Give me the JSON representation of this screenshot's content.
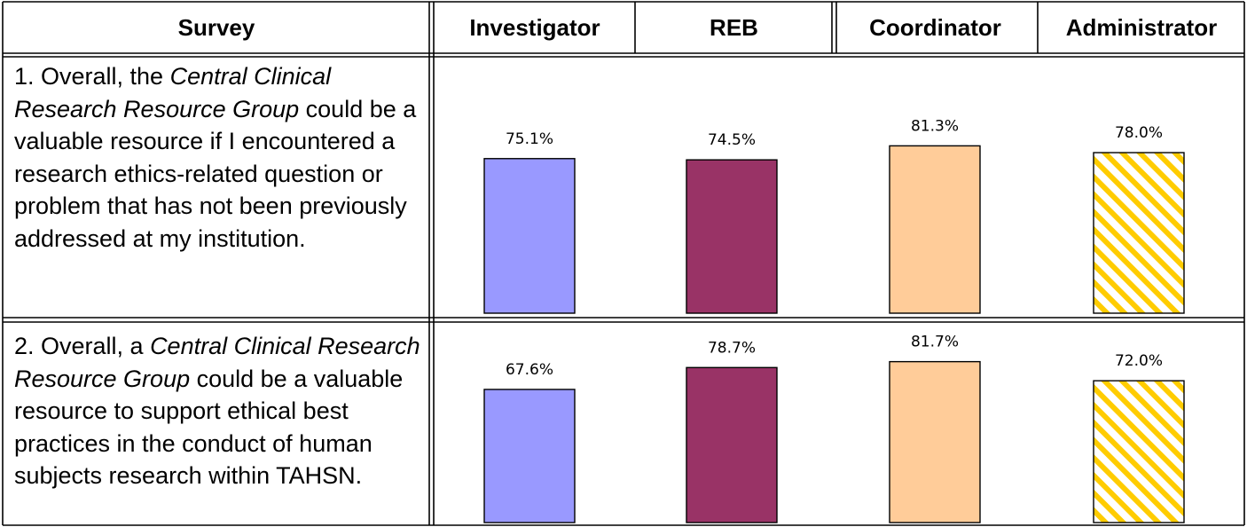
{
  "table": {
    "headers": [
      "Survey",
      "Investigator",
      "REB",
      "Coordinator",
      "Administrator"
    ]
  },
  "questions": [
    {
      "prefix": "1. Overall, the ",
      "italic": "Central Clinical Research Resource Group",
      "suffix": " could be a valuable resource if I encountered a research ethics-related question or problem that has not been previously addressed at my institution."
    },
    {
      "prefix": "2. Overall, a ",
      "italic": "Central Clinical Research Resource Group",
      "suffix": " could be a valuable resource to support ethical best practices in the conduct of human subjects research within TAHSN."
    }
  ],
  "chart_data": [
    {
      "type": "bar",
      "categories": [
        "Investigator",
        "REB",
        "Coordinator",
        "Administrator"
      ],
      "values": [
        75.1,
        74.5,
        81.3,
        78.0
      ],
      "labels": [
        "75.1%",
        "74.5%",
        "81.3%",
        "78.0%"
      ],
      "colors": [
        "#9999ff",
        "#993366",
        "#ffcc99",
        "#ffcc00"
      ],
      "patterns": [
        "solid",
        "solid",
        "solid",
        "hatch"
      ],
      "ylim": [
        0,
        100
      ],
      "grid": false
    },
    {
      "type": "bar",
      "categories": [
        "Investigator",
        "REB",
        "Coordinator",
        "Administrator"
      ],
      "values": [
        67.6,
        78.7,
        81.7,
        72.0
      ],
      "labels": [
        "67.6%",
        "78.7%",
        "81.7%",
        "72.0%"
      ],
      "colors": [
        "#9999ff",
        "#993366",
        "#ffcc99",
        "#ffcc00"
      ],
      "patterns": [
        "solid",
        "solid",
        "solid",
        "hatch"
      ],
      "ylim": [
        0,
        100
      ],
      "grid": false
    }
  ]
}
